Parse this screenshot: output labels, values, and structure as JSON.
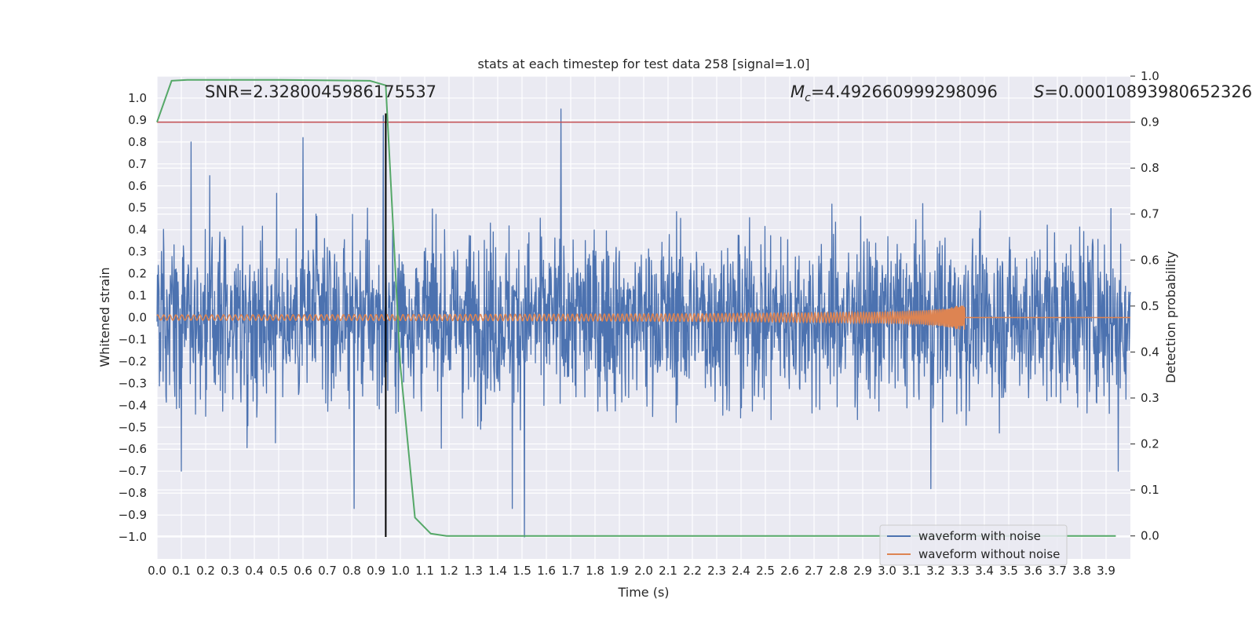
{
  "chart_data": {
    "type": "line",
    "title": "stats at each timestep for test data 258 [signal=1.0]",
    "xlabel": "Time (s)",
    "ylabel": "Whitened strain",
    "y2label": "Detection probability",
    "xlim": [
      0.0,
      4.0
    ],
    "ylim": [
      -1.1,
      1.1
    ],
    "y2lim": [
      -0.05,
      1.0
    ],
    "xticks": [
      "0.0",
      "0.1",
      "0.2",
      "0.3",
      "0.4",
      "0.5",
      "0.6",
      "0.7",
      "0.8",
      "0.9",
      "1.0",
      "1.1",
      "1.2",
      "1.3",
      "1.4",
      "1.5",
      "1.6",
      "1.7",
      "1.8",
      "1.9",
      "2.0",
      "2.1",
      "2.2",
      "2.3",
      "2.4",
      "2.5",
      "2.6",
      "2.7",
      "2.8",
      "2.9",
      "3.0",
      "3.1",
      "3.2",
      "3.3",
      "3.4",
      "3.5",
      "3.6",
      "3.7",
      "3.8",
      "3.9"
    ],
    "yticks": [
      "1.0",
      "0.9",
      "0.8",
      "0.7",
      "0.6",
      "0.5",
      "0.4",
      "0.3",
      "0.2",
      "0.1",
      "0.0",
      "−0.1",
      "−0.2",
      "−0.3",
      "−0.4",
      "−0.5",
      "−0.6",
      "−0.7",
      "−0.8",
      "−0.9",
      "−1.0"
    ],
    "y2ticks": [
      "1.0",
      "0.9",
      "0.8",
      "0.7",
      "0.6",
      "0.5",
      "0.4",
      "0.3",
      "0.2",
      "0.1",
      "0.0"
    ],
    "grid": true,
    "legend_position": "lower-right",
    "annotations": {
      "snr": "SNR=2.3280045986175537",
      "mc_symbol": "M",
      "mc_sub": "c",
      "mc_value": "=4.492660999298096",
      "s_symbol": "S",
      "s_value": "=0.00010893980652326"
    },
    "colors": {
      "noisy": "#4c72b0",
      "clean": "#dd8452",
      "prob": "#55a868",
      "threshold": "#c44e52",
      "marker": "#000000",
      "background": "#eaeaf2",
      "grid": "#ffffff"
    },
    "series": [
      {
        "name": "waveform with noise",
        "axis": "left",
        "style": "noisy-strain",
        "x_range": [
          0.0,
          4.0
        ],
        "extreme_points": [
          [
            0.14,
            0.8
          ],
          [
            0.6,
            0.82
          ],
          [
            1.66,
            0.95
          ],
          [
            0.93,
            0.92
          ],
          [
            1.51,
            -1.0
          ],
          [
            0.81,
            -0.87
          ],
          [
            1.46,
            -0.87
          ],
          [
            3.18,
            -0.78
          ],
          [
            0.1,
            -0.7
          ],
          [
            3.95,
            -0.7
          ]
        ]
      },
      {
        "name": "waveform without noise",
        "axis": "left",
        "style": "chirp",
        "x_range": [
          0.0,
          4.0
        ],
        "merger_time": 3.32,
        "start_amplitude": 0.012,
        "peak_amplitude": 0.055
      },
      {
        "axis": "right",
        "style": "probability",
        "x": [
          0.0,
          0.06,
          0.125,
          0.5,
          0.875,
          0.94,
          1.0,
          1.06,
          1.125,
          1.19,
          1.25,
          1.5,
          2.0,
          2.5,
          3.0,
          3.5,
          3.94
        ],
        "y": [
          0.9,
          0.99,
          0.992,
          0.992,
          0.99,
          0.98,
          0.37,
          0.04,
          0.005,
          0.0,
          0.0,
          0.0,
          0.0,
          0.0,
          0.0,
          0.0,
          0.0
        ]
      },
      {
        "axis": "right",
        "style": "threshold",
        "y": 0.9
      },
      {
        "axis": "left",
        "style": "marker",
        "x": 0.94,
        "y_range": [
          -1.0,
          0.93
        ]
      }
    ]
  }
}
